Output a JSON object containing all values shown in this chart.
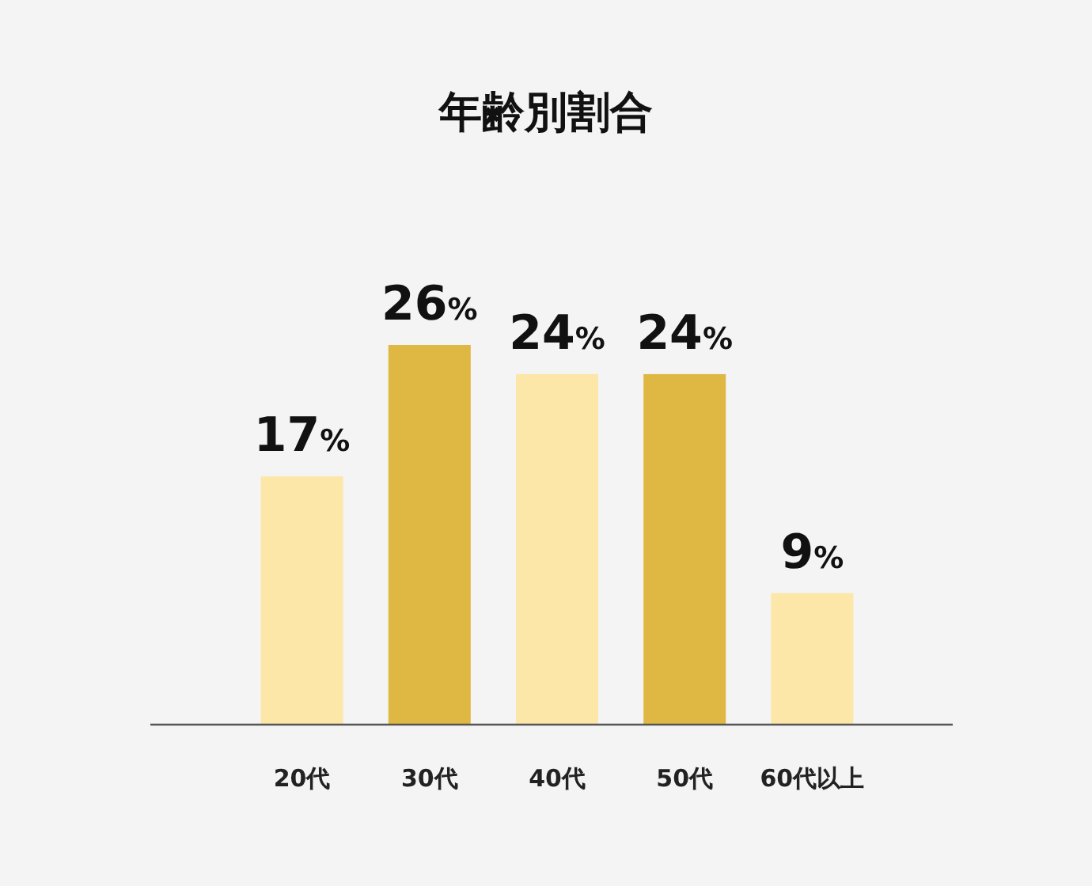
{
  "chart_data": {
    "type": "bar",
    "title": "年齢別割合",
    "categories": [
      "20代",
      "30代",
      "40代",
      "50代",
      "60代以上"
    ],
    "values": [
      17,
      26,
      24,
      24,
      9
    ],
    "colors": [
      "#fde7a8",
      "#dfb843",
      "#fde7a8",
      "#dfb843",
      "#fde7a8"
    ],
    "value_labels": [
      "17%",
      "26%",
      "24%",
      "24%",
      "9%"
    ]
  }
}
